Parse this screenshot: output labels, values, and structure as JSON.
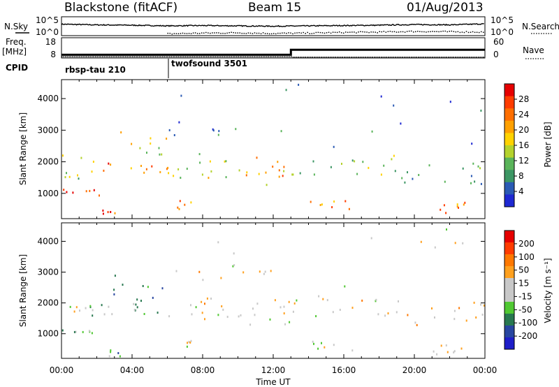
{
  "header": {
    "title": "Blackstone (fitACF)",
    "beam": "Beam 15",
    "date": "01/Aug/2013"
  },
  "side_labels": {
    "nsky": "N.Sky",
    "freq_line1": "Freq.",
    "freq_line2": "[MHz]",
    "cpid": "CPID",
    "nsearch": "N.Search",
    "nave": "Nave"
  },
  "cpid_segments": [
    {
      "label": "rbsp-tau 210",
      "start_hour": 0
    },
    {
      "label": "twofsound 3501",
      "start_hour": 6
    }
  ],
  "colors": {
    "power_scale": [
      "#1e28d2",
      "#2a5ab4",
      "#3c9664",
      "#5ab45a",
      "#b4d22d",
      "#ffd200",
      "#ffa000",
      "#ff6e00",
      "#ff3c00",
      "#e60000"
    ],
    "velocity_scale": [
      "#1e1ec8",
      "#2846a0",
      "#287850",
      "#50c832",
      "#c8c8c8",
      "#c8c8c8",
      "#ffa01e",
      "#ff7800",
      "#ff3c00",
      "#e60000"
    ]
  },
  "chart_data": [
    {
      "type": "line",
      "name": "noise-panel",
      "ylabel_left": "N.Sky",
      "ylabel_right": "N.Search",
      "y_ticks_left": [
        "10^5",
        "10^0"
      ],
      "y_ticks_right": [
        "10^5",
        "10^0"
      ],
      "x": [
        0,
        2,
        4,
        6,
        8,
        10,
        12,
        14,
        16,
        18,
        20,
        22,
        24
      ],
      "series": [
        {
          "values": [
            3.2,
            3.0,
            2.9,
            2.7,
            2.8,
            2.7,
            2.6,
            2.7,
            2.8,
            2.9,
            3.1,
            3.0,
            3.3
          ]
        },
        {
          "values": [
            0.3,
            0.3,
            0.4,
            0.3,
            0.5,
            0.6,
            0.4,
            0.5,
            0.7,
            0.8,
            1.0,
            0.9,
            0.8
          ]
        }
      ]
    },
    {
      "type": "line",
      "name": "frequency-nave-panel",
      "ylabel_left": "Freq. [MHz]",
      "ylabel_right": "Nave",
      "y_ticks_left": [
        "18",
        "8"
      ],
      "y_ticks_right": [
        "60",
        "0"
      ],
      "x": [
        0,
        13,
        13,
        24
      ],
      "series": [
        {
          "values": [
            10,
            10,
            14,
            14
          ]
        },
        {
          "values": [
            5,
            5,
            3,
            3
          ]
        }
      ]
    },
    {
      "type": "heatmap",
      "name": "power-panel",
      "ylabel": "Slant Range [km]",
      "y_ticks": [
        "1000",
        "2000",
        "3000",
        "4000"
      ],
      "ylim": [
        200,
        4600
      ],
      "xlim": [
        0,
        24
      ],
      "colorbar_label": "Power [dB]",
      "colorbar_ticks": [
        "28",
        "24",
        "20",
        "16",
        "12",
        "8",
        "4"
      ],
      "colorbar_range": [
        0,
        32
      ]
    },
    {
      "type": "heatmap",
      "name": "velocity-panel",
      "ylabel": "Slant Range [km]",
      "y_ticks": [
        "1000",
        "2000",
        "3000",
        "4000"
      ],
      "ylim": [
        200,
        4600
      ],
      "xlim": [
        0,
        24
      ],
      "xlabel": "Time UT",
      "x_ticks": [
        "00:00",
        "04:00",
        "08:00",
        "12:00",
        "16:00",
        "20:00",
        "00:00"
      ],
      "colorbar_label": "Velocity [m s⁻¹]",
      "colorbar_ticks": [
        "200",
        "100",
        "50",
        "15",
        "-15",
        "-50",
        "-100",
        "-200"
      ]
    }
  ],
  "scatter_regions": [
    {
      "t0": 0.0,
      "t1": 2.2,
      "r0": 950,
      "r1": 1150,
      "density": 0.9,
      "level": 0.9,
      "vel": -0.2
    },
    {
      "t0": 2.0,
      "t1": 6.0,
      "r0": 1650,
      "r1": 2000,
      "density": 0.8,
      "level": 0.75,
      "vel": -0.3
    },
    {
      "t0": 0.0,
      "t1": 2.0,
      "r0": 1500,
      "r1": 2300,
      "density": 0.5,
      "level": 0.45,
      "vel": -0.1
    },
    {
      "t0": 2.5,
      "t1": 6.0,
      "r0": 2100,
      "r1": 3000,
      "density": 0.3,
      "level": 0.45,
      "vel": -0.6
    },
    {
      "t0": 2.3,
      "t1": 3.3,
      "r0": 250,
      "r1": 500,
      "density": 0.7,
      "level": 0.85,
      "vel": -0.5
    },
    {
      "t0": 6.0,
      "t1": 13.0,
      "r0": 3000,
      "r1": 3080,
      "density": 0.6,
      "level": 0.2,
      "vel": 0.3
    },
    {
      "t0": 6.5,
      "t1": 7.5,
      "r0": 500,
      "r1": 800,
      "density": 0.7,
      "level": 0.7,
      "vel": 0.0
    },
    {
      "t0": 6.0,
      "t1": 9.5,
      "r0": 1500,
      "r1": 2300,
      "density": 0.55,
      "level": 0.5,
      "vel": 0.1
    },
    {
      "t0": 10.0,
      "t1": 13.0,
      "r0": 1200,
      "r1": 2200,
      "density": 0.5,
      "level": 0.65,
      "vel": 0.0
    },
    {
      "t0": 13.0,
      "t1": 19.0,
      "r0": 1600,
      "r1": 2300,
      "density": 0.45,
      "level": 0.4,
      "vel": 0.1
    },
    {
      "t0": 14.0,
      "t1": 16.5,
      "r0": 450,
      "r1": 800,
      "density": 0.6,
      "level": 0.7,
      "vel": 0.0
    },
    {
      "t0": 19.0,
      "t1": 24.0,
      "r0": 1300,
      "r1": 2100,
      "density": 0.4,
      "level": 0.3,
      "vel": 0.2
    },
    {
      "t0": 21.0,
      "t1": 23.0,
      "r0": 350,
      "r1": 800,
      "density": 0.6,
      "level": 0.75,
      "vel": 0.0
    },
    {
      "t0": 6.0,
      "t1": 24.0,
      "r0": 2400,
      "r1": 4500,
      "density": 0.04,
      "level": 0.2,
      "vel": 0.0
    }
  ]
}
